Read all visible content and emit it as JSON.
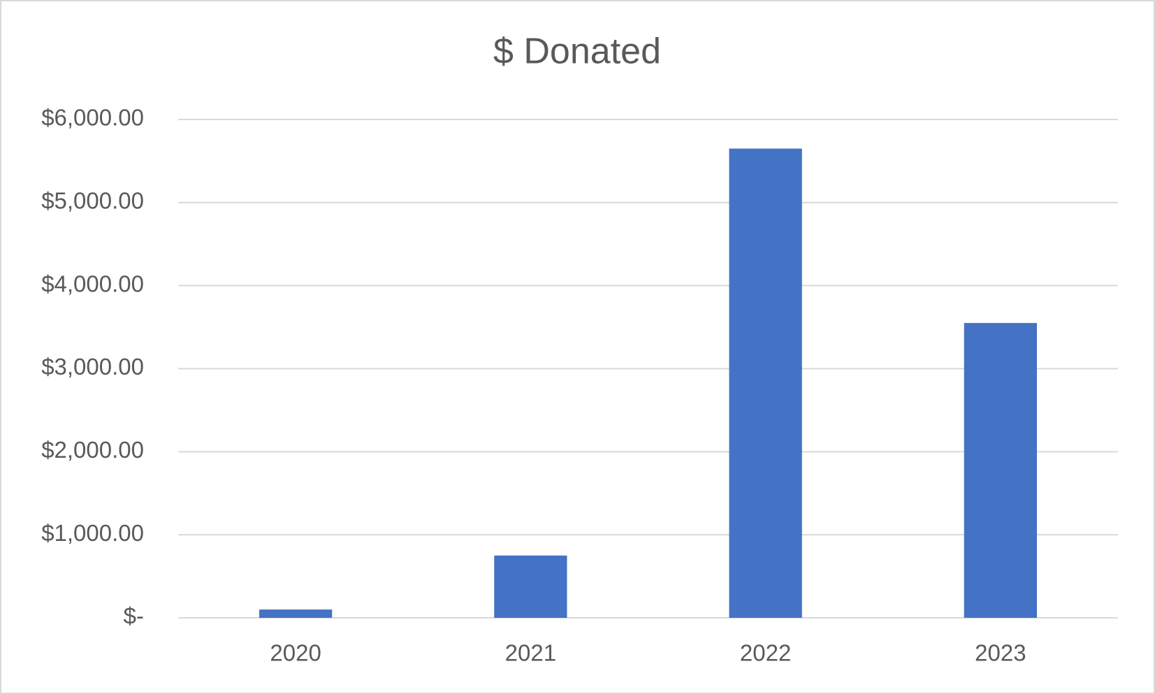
{
  "chart_data": {
    "type": "bar",
    "title": "$ Donated",
    "categories": [
      "2020",
      "2021",
      "2022",
      "2023"
    ],
    "values": [
      100,
      750,
      5650,
      3550
    ],
    "color": "#4472c4",
    "ylim": [
      0,
      6000
    ],
    "yticks": [
      {
        "value": 0,
        "label": "$-"
      },
      {
        "value": 1000,
        "label": "$1,000.00"
      },
      {
        "value": 2000,
        "label": "$2,000.00"
      },
      {
        "value": 3000,
        "label": "$3,000.00"
      },
      {
        "value": 4000,
        "label": "$4,000.00"
      },
      {
        "value": 5000,
        "label": "$5,000.00"
      },
      {
        "value": 6000,
        "label": "$6,000.00"
      }
    ],
    "grid": true
  }
}
